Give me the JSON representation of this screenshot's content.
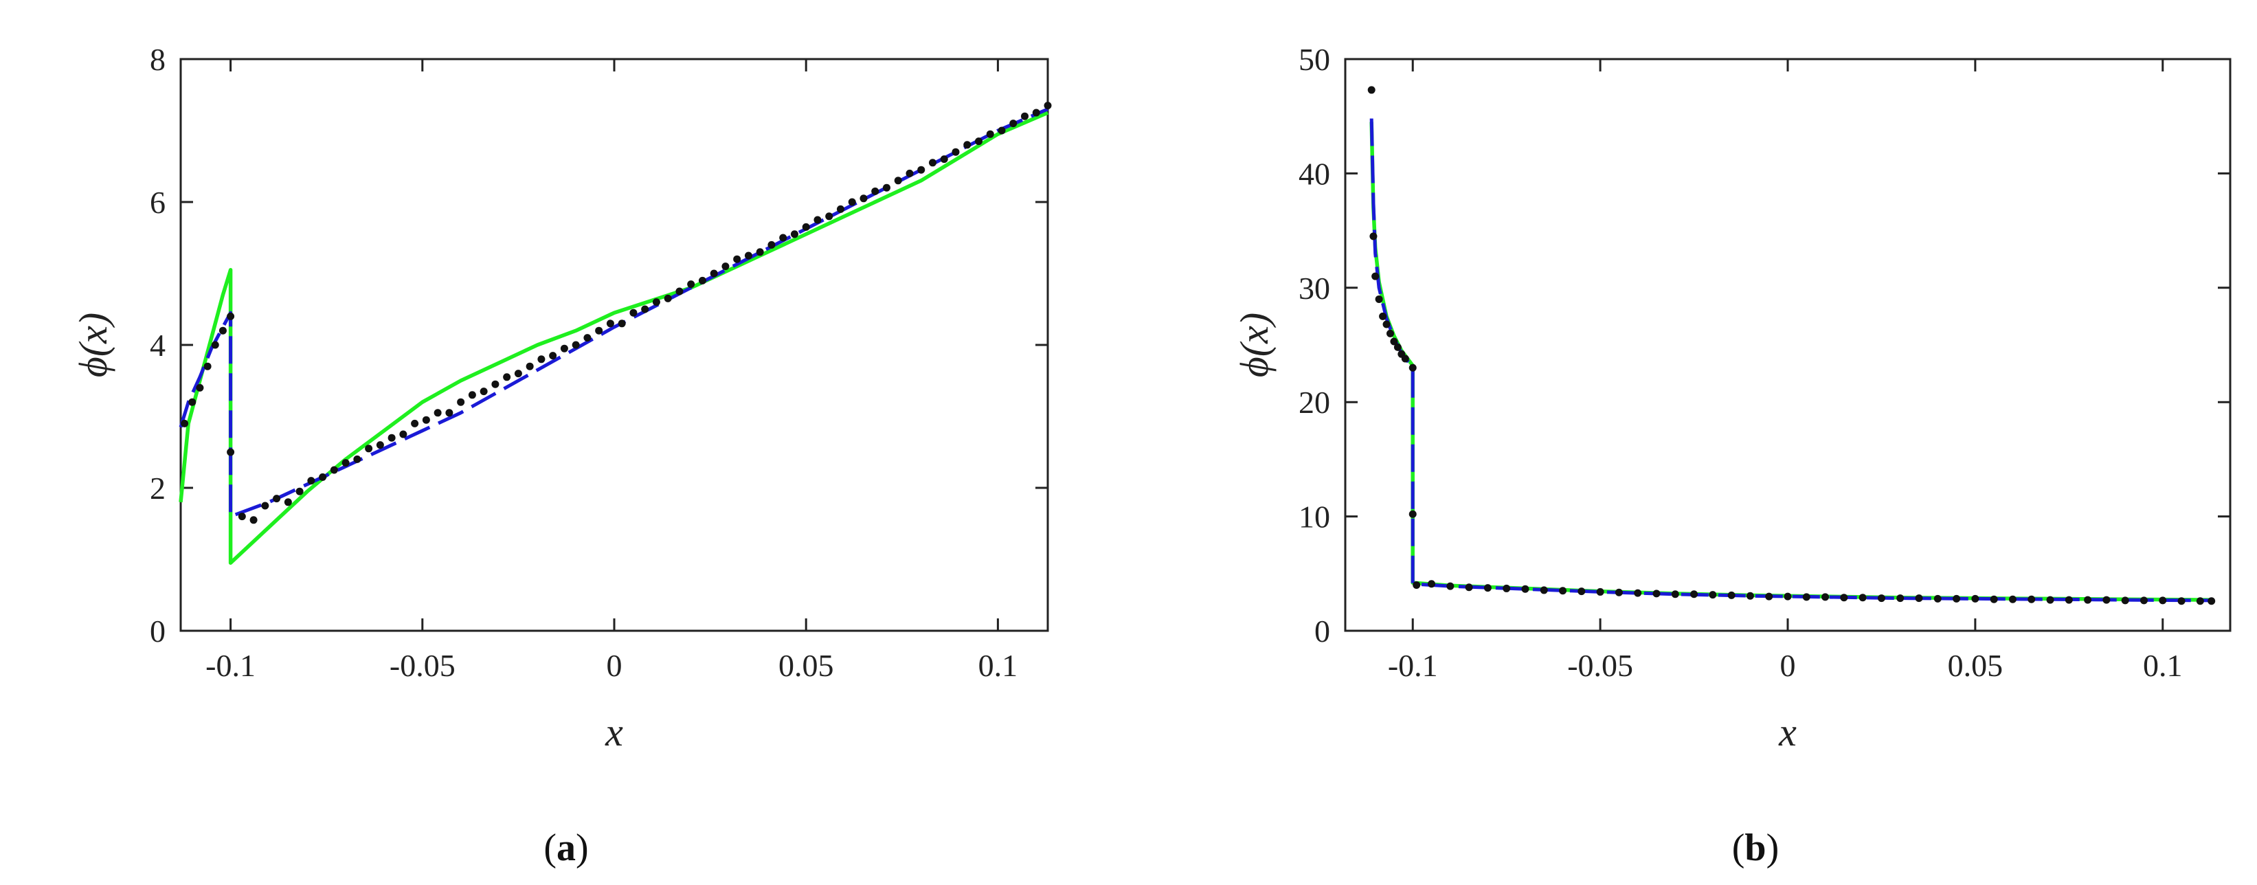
{
  "chart_data": [
    {
      "panel": "a",
      "caption_letter": "a",
      "type": "line",
      "xlabel": "x",
      "ylabel": "ϕ(x)",
      "xlim": [
        -0.113,
        0.113
      ],
      "ylim": [
        0,
        8
      ],
      "xticks": [
        -0.1,
        -0.05,
        0,
        0.05,
        0.1
      ],
      "xtick_labels": [
        "-0.1",
        "-0.05",
        "0",
        "0.05",
        "0.1"
      ],
      "yticks": [
        0,
        2,
        4,
        6,
        8
      ],
      "ytick_labels": [
        "0",
        "2",
        "4",
        "6",
        "8"
      ],
      "grid": false,
      "series": [
        {
          "style": "solid",
          "color": "#1fef1f",
          "points": [
            [
              -0.113,
              1.8
            ],
            [
              -0.111,
              2.9
            ],
            [
              -0.108,
              3.5
            ],
            [
              -0.105,
              4.1
            ],
            [
              -0.102,
              4.7
            ],
            [
              -0.1,
              5.05
            ],
            [
              -0.1,
              0.95
            ],
            [
              -0.09,
              1.45
            ],
            [
              -0.08,
              1.95
            ],
            [
              -0.07,
              2.4
            ],
            [
              -0.06,
              2.8
            ],
            [
              -0.05,
              3.2
            ],
            [
              -0.04,
              3.5
            ],
            [
              -0.03,
              3.75
            ],
            [
              -0.02,
              4.0
            ],
            [
              -0.01,
              4.2
            ],
            [
              0.0,
              4.45
            ],
            [
              0.02,
              4.8
            ],
            [
              0.04,
              5.3
            ],
            [
              0.06,
              5.8
            ],
            [
              0.08,
              6.3
            ],
            [
              0.1,
              6.95
            ],
            [
              0.113,
              7.25
            ]
          ]
        },
        {
          "style": "dashed",
          "color": "#1a1ad6",
          "points": [
            [
              -0.113,
              2.85
            ],
            [
              -0.111,
              3.2
            ],
            [
              -0.108,
              3.55
            ],
            [
              -0.105,
              3.95
            ],
            [
              -0.102,
              4.25
            ],
            [
              -0.1,
              4.45
            ],
            [
              -0.1,
              1.6
            ],
            [
              -0.095,
              1.7
            ],
            [
              -0.09,
              1.8
            ],
            [
              -0.08,
              2.05
            ],
            [
              -0.07,
              2.3
            ],
            [
              -0.06,
              2.55
            ],
            [
              -0.05,
              2.8
            ],
            [
              -0.04,
              3.05
            ],
            [
              -0.03,
              3.35
            ],
            [
              -0.02,
              3.65
            ],
            [
              -0.01,
              3.95
            ],
            [
              0.0,
              4.25
            ],
            [
              0.02,
              4.8
            ],
            [
              0.04,
              5.35
            ],
            [
              0.06,
              5.9
            ],
            [
              0.08,
              6.45
            ],
            [
              0.1,
              7.0
            ],
            [
              0.113,
              7.3
            ]
          ]
        },
        {
          "style": "markers",
          "color": "#111111",
          "points": [
            [
              -0.112,
              2.9
            ],
            [
              -0.11,
              3.2
            ],
            [
              -0.108,
              3.4
            ],
            [
              -0.106,
              3.7
            ],
            [
              -0.104,
              4.0
            ],
            [
              -0.102,
              4.2
            ],
            [
              -0.1,
              4.4
            ],
            [
              -0.1,
              2.5
            ],
            [
              -0.097,
              1.6
            ],
            [
              -0.094,
              1.55
            ],
            [
              -0.091,
              1.75
            ],
            [
              -0.088,
              1.85
            ],
            [
              -0.085,
              1.8
            ],
            [
              -0.082,
              1.95
            ],
            [
              -0.079,
              2.1
            ],
            [
              -0.076,
              2.15
            ],
            [
              -0.073,
              2.25
            ],
            [
              -0.07,
              2.35
            ],
            [
              -0.067,
              2.4
            ],
            [
              -0.064,
              2.55
            ],
            [
              -0.061,
              2.6
            ],
            [
              -0.058,
              2.7
            ],
            [
              -0.055,
              2.75
            ],
            [
              -0.052,
              2.9
            ],
            [
              -0.049,
              2.95
            ],
            [
              -0.046,
              3.05
            ],
            [
              -0.043,
              3.05
            ],
            [
              -0.04,
              3.2
            ],
            [
              -0.037,
              3.3
            ],
            [
              -0.034,
              3.35
            ],
            [
              -0.031,
              3.45
            ],
            [
              -0.028,
              3.55
            ],
            [
              -0.025,
              3.6
            ],
            [
              -0.022,
              3.7
            ],
            [
              -0.019,
              3.8
            ],
            [
              -0.016,
              3.85
            ],
            [
              -0.013,
              3.95
            ],
            [
              -0.01,
              4.0
            ],
            [
              -0.007,
              4.1
            ],
            [
              -0.004,
              4.2
            ],
            [
              -0.001,
              4.3
            ],
            [
              0.002,
              4.3
            ],
            [
              0.005,
              4.45
            ],
            [
              0.008,
              4.5
            ],
            [
              0.011,
              4.6
            ],
            [
              0.014,
              4.65
            ],
            [
              0.017,
              4.75
            ],
            [
              0.02,
              4.85
            ],
            [
              0.023,
              4.9
            ],
            [
              0.026,
              5.0
            ],
            [
              0.029,
              5.1
            ],
            [
              0.032,
              5.2
            ],
            [
              0.035,
              5.25
            ],
            [
              0.038,
              5.3
            ],
            [
              0.041,
              5.4
            ],
            [
              0.044,
              5.5
            ],
            [
              0.047,
              5.55
            ],
            [
              0.05,
              5.65
            ],
            [
              0.053,
              5.75
            ],
            [
              0.056,
              5.8
            ],
            [
              0.059,
              5.9
            ],
            [
              0.062,
              6.0
            ],
            [
              0.065,
              6.05
            ],
            [
              0.068,
              6.15
            ],
            [
              0.071,
              6.2
            ],
            [
              0.074,
              6.3
            ],
            [
              0.077,
              6.4
            ],
            [
              0.08,
              6.45
            ],
            [
              0.083,
              6.55
            ],
            [
              0.086,
              6.6
            ],
            [
              0.089,
              6.7
            ],
            [
              0.092,
              6.8
            ],
            [
              0.095,
              6.85
            ],
            [
              0.098,
              6.95
            ],
            [
              0.101,
              7.0
            ],
            [
              0.104,
              7.1
            ],
            [
              0.107,
              7.2
            ],
            [
              0.11,
              7.25
            ],
            [
              0.113,
              7.35
            ]
          ]
        }
      ]
    },
    {
      "panel": "b",
      "caption_letter": "b",
      "type": "line",
      "xlabel": "x",
      "ylabel": "ϕ(x)",
      "xlim": [
        -0.118,
        0.118
      ],
      "ylim": [
        0,
        50
      ],
      "xticks": [
        -0.1,
        -0.05,
        0,
        0.05,
        0.1
      ],
      "xtick_labels": [
        "-0.1",
        "-0.05",
        "0",
        "0.05",
        "0.1"
      ],
      "yticks": [
        0,
        10,
        20,
        30,
        40,
        50
      ],
      "ytick_labels": [
        "0",
        "10",
        "20",
        "30",
        "40",
        "50"
      ],
      "grid": false,
      "series": [
        {
          "style": "solid",
          "color": "#1fef1f",
          "points": [
            [
              -0.111,
              44.5
            ],
            [
              -0.1105,
              37.0
            ],
            [
              -0.11,
              33.5
            ],
            [
              -0.109,
              30.5
            ],
            [
              -0.107,
              27.5
            ],
            [
              -0.105,
              25.8
            ],
            [
              -0.103,
              24.5
            ],
            [
              -0.1,
              23.2
            ],
            [
              -0.1,
              4.2
            ],
            [
              -0.09,
              3.95
            ],
            [
              -0.07,
              3.7
            ],
            [
              -0.05,
              3.45
            ],
            [
              -0.03,
              3.25
            ],
            [
              -0.01,
              3.1
            ],
            [
              0.01,
              3.0
            ],
            [
              0.03,
              2.9
            ],
            [
              0.05,
              2.85
            ],
            [
              0.07,
              2.8
            ],
            [
              0.09,
              2.75
            ],
            [
              0.113,
              2.7
            ]
          ]
        },
        {
          "style": "dashed",
          "color": "#1a1ad6",
          "points": [
            [
              -0.111,
              44.8
            ],
            [
              -0.1105,
              37.5
            ],
            [
              -0.11,
              33.0
            ],
            [
              -0.109,
              30.0
            ],
            [
              -0.107,
              27.3
            ],
            [
              -0.105,
              25.6
            ],
            [
              -0.103,
              24.3
            ],
            [
              -0.1,
              23.0
            ],
            [
              -0.1,
              4.1
            ],
            [
              -0.09,
              3.9
            ],
            [
              -0.07,
              3.65
            ],
            [
              -0.05,
              3.4
            ],
            [
              -0.03,
              3.2
            ],
            [
              -0.01,
              3.05
            ],
            [
              0.01,
              2.95
            ],
            [
              0.03,
              2.85
            ],
            [
              0.05,
              2.8
            ],
            [
              0.07,
              2.75
            ],
            [
              0.09,
              2.7
            ],
            [
              0.113,
              2.65
            ]
          ]
        },
        {
          "style": "markers",
          "color": "#111111",
          "points": [
            [
              -0.111,
              47.3
            ],
            [
              -0.1105,
              34.5
            ],
            [
              -0.11,
              31.0
            ],
            [
              -0.109,
              29.0
            ],
            [
              -0.108,
              27.5
            ],
            [
              -0.107,
              26.8
            ],
            [
              -0.106,
              26.0
            ],
            [
              -0.105,
              25.3
            ],
            [
              -0.104,
              24.8
            ],
            [
              -0.103,
              24.2
            ],
            [
              -0.102,
              23.8
            ],
            [
              -0.1,
              23.0
            ],
            [
              -0.1,
              10.2
            ],
            [
              -0.099,
              4.0
            ],
            [
              -0.095,
              4.1
            ],
            [
              -0.09,
              3.9
            ],
            [
              -0.085,
              3.8
            ],
            [
              -0.08,
              3.75
            ],
            [
              -0.075,
              3.7
            ],
            [
              -0.07,
              3.65
            ],
            [
              -0.065,
              3.55
            ],
            [
              -0.06,
              3.5
            ],
            [
              -0.055,
              3.45
            ],
            [
              -0.05,
              3.4
            ],
            [
              -0.045,
              3.35
            ],
            [
              -0.04,
              3.3
            ],
            [
              -0.035,
              3.25
            ],
            [
              -0.03,
              3.2
            ],
            [
              -0.025,
              3.2
            ],
            [
              -0.02,
              3.15
            ],
            [
              -0.015,
              3.1
            ],
            [
              -0.01,
              3.05
            ],
            [
              -0.005,
              3.0
            ],
            [
              0.0,
              3.0
            ],
            [
              0.005,
              2.95
            ],
            [
              0.01,
              2.95
            ],
            [
              0.015,
              2.9
            ],
            [
              0.02,
              2.9
            ],
            [
              0.025,
              2.85
            ],
            [
              0.03,
              2.85
            ],
            [
              0.035,
              2.85
            ],
            [
              0.04,
              2.8
            ],
            [
              0.045,
              2.8
            ],
            [
              0.05,
              2.8
            ],
            [
              0.055,
              2.75
            ],
            [
              0.06,
              2.75
            ],
            [
              0.065,
              2.75
            ],
            [
              0.07,
              2.7
            ],
            [
              0.075,
              2.7
            ],
            [
              0.08,
              2.7
            ],
            [
              0.085,
              2.7
            ],
            [
              0.09,
              2.65
            ],
            [
              0.095,
              2.65
            ],
            [
              0.1,
              2.65
            ],
            [
              0.105,
              2.6
            ],
            [
              0.11,
              2.6
            ],
            [
              0.113,
              2.6
            ]
          ]
        }
      ]
    }
  ]
}
